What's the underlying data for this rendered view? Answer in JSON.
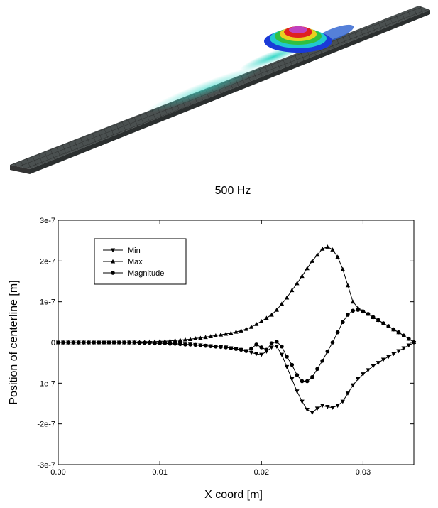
{
  "figure": {
    "caption": "500 Hz"
  },
  "chart_data": {
    "type": "line",
    "xlabel": "X coord [m]",
    "ylabel": "Position of centerline [m]",
    "x": [
      0,
      0.0005,
      0.001,
      0.0015,
      0.002,
      0.0025,
      0.003,
      0.0035,
      0.004,
      0.0045,
      0.005,
      0.0055,
      0.006,
      0.0065,
      0.007,
      0.0075,
      0.008,
      0.0085,
      0.009,
      0.0095,
      0.01,
      0.0105,
      0.011,
      0.0115,
      0.012,
      0.0125,
      0.013,
      0.0135,
      0.014,
      0.0145,
      0.015,
      0.0155,
      0.016,
      0.0165,
      0.017,
      0.0175,
      0.018,
      0.0185,
      0.019,
      0.0195,
      0.02,
      0.0205,
      0.021,
      0.0215,
      0.022,
      0.0225,
      0.023,
      0.0235,
      0.024,
      0.0245,
      0.025,
      0.0255,
      0.026,
      0.0265,
      0.027,
      0.0275,
      0.028,
      0.0285,
      0.029,
      0.0295,
      0.03,
      0.0305,
      0.031,
      0.0315,
      0.032,
      0.0325,
      0.033,
      0.0335,
      0.034,
      0.0345,
      0.035
    ],
    "series": [
      {
        "name": "Min",
        "color": "#000000",
        "marker": "triangle-down",
        "values": [
          0,
          0,
          0,
          0,
          0,
          0,
          0,
          0,
          0,
          0,
          0,
          0,
          0,
          0,
          0,
          0,
          -1e-09,
          -1e-09,
          -1e-09,
          -2e-09,
          -2e-09,
          -2e-09,
          -3e-09,
          -3e-09,
          -4e-09,
          -5e-09,
          -5e-09,
          -6e-09,
          -7e-09,
          -8e-09,
          -9e-09,
          -1e-08,
          -1.1e-08,
          -1.2e-08,
          -1.4e-08,
          -1.6e-08,
          -1.8e-08,
          -2.1e-08,
          -2.5e-08,
          -2.8e-08,
          -3e-08,
          -2.2e-08,
          -1.2e-08,
          -1e-08,
          -3e-08,
          -6e-08,
          -9e-08,
          -1.2e-07,
          -1.45e-07,
          -1.65e-07,
          -1.72e-07,
          -1.62e-07,
          -1.55e-07,
          -1.58e-07,
          -1.6e-07,
          -1.55e-07,
          -1.45e-07,
          -1.25e-07,
          -1.05e-07,
          -9e-08,
          -7.8e-08,
          -6.8e-08,
          -5.8e-08,
          -5e-08,
          -4.2e-08,
          -3.5e-08,
          -2.8e-08,
          -2.1e-08,
          -1.4e-08,
          -7e-09,
          -1e-09
        ]
      },
      {
        "name": "Max",
        "color": "#000000",
        "marker": "triangle-up",
        "values": [
          0,
          0,
          0,
          0,
          0,
          0,
          0,
          0,
          0,
          0,
          0,
          0,
          0,
          0,
          0,
          0,
          1e-09,
          1e-09,
          2e-09,
          2e-09,
          3e-09,
          3e-09,
          4e-09,
          5e-09,
          6e-09,
          7e-09,
          8e-09,
          1e-08,
          1.1e-08,
          1.3e-08,
          1.5e-08,
          1.7e-08,
          1.9e-08,
          2.1e-08,
          2.3e-08,
          2.6e-08,
          2.9e-08,
          3.3e-08,
          3.8e-08,
          4.5e-08,
          5.2e-08,
          6e-08,
          6.8e-08,
          8e-08,
          9.5e-08,
          1.1e-07,
          1.28e-07,
          1.45e-07,
          1.63e-07,
          1.82e-07,
          2e-07,
          2.15e-07,
          2.3e-07,
          2.35e-07,
          2.28e-07,
          2.1e-07,
          1.8e-07,
          1.4e-07,
          1e-07,
          8.5e-08,
          7.8e-08,
          7e-08,
          6.2e-08,
          5.5e-08,
          4.7e-08,
          4e-08,
          3.2e-08,
          2.5e-08,
          1.7e-08,
          9e-09,
          1e-09
        ]
      },
      {
        "name": "Magnitude",
        "color": "#000000",
        "marker": "circle",
        "values": [
          0,
          0,
          0,
          0,
          0,
          0,
          0,
          0,
          0,
          0,
          0,
          0,
          0,
          0,
          0,
          0,
          -1e-09,
          -1e-09,
          -1e-09,
          -2e-09,
          -2e-09,
          -2e-09,
          -3e-09,
          -3e-09,
          -4e-09,
          -5e-09,
          -5e-09,
          -6e-09,
          -7e-09,
          -8e-09,
          -9e-09,
          -1e-08,
          -1.1e-08,
          -1.2e-08,
          -1.4e-08,
          -1.6e-08,
          -1.8e-08,
          -2.1e-08,
          -1.5e-08,
          -5e-09,
          -1.2e-08,
          -1.8e-08,
          -2e-09,
          2e-09,
          -1e-08,
          -3.5e-08,
          -5.5e-08,
          -8e-08,
          -9.5e-08,
          -9.5e-08,
          -8.5e-08,
          -6.5e-08,
          -4.5e-08,
          -2.2e-08,
          0,
          2.5e-08,
          5e-08,
          6.8e-08,
          7.8e-08,
          8e-08,
          7.6e-08,
          7e-08,
          6.2e-08,
          5.5e-08,
          4.7e-08,
          4e-08,
          3.2e-08,
          2.5e-08,
          1.7e-08,
          9e-09,
          1e-09
        ]
      }
    ],
    "xlim": [
      0,
      0.035
    ],
    "xticks": [
      {
        "value": 0,
        "label": "0.00"
      },
      0.01,
      0.02,
      0.03
    ],
    "ylim": [
      -3e-07,
      3e-07
    ],
    "yticks": [
      {
        "value": -3e-07,
        "label": "-3e-7"
      },
      {
        "value": -2e-07,
        "label": "-2e-7"
      },
      {
        "value": -1e-07,
        "label": "-1e-7"
      },
      0,
      {
        "value": 1e-07,
        "label": "1e-7"
      },
      {
        "value": 2e-07,
        "label": "2e-7"
      },
      {
        "value": 3e-07,
        "label": "3e-7"
      }
    ],
    "legend": "upper-left"
  }
}
